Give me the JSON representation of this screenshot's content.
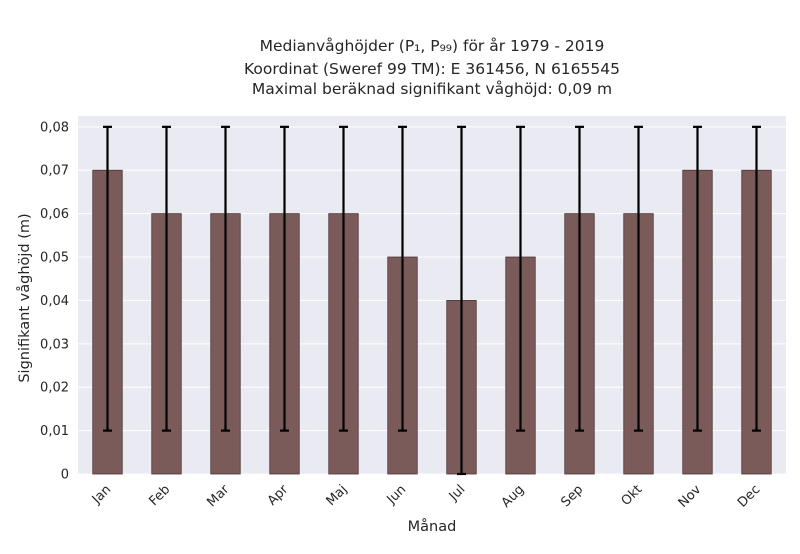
{
  "chart_data": {
    "type": "bar",
    "title_lines": [
      "Medianvåghöjder (P₁, P₉₉) för år 1979 - 2019",
      "Koordinat (Sweref 99 TM): E 361456, N 6165545",
      "Maximal beräknad signifikant våghöjd: 0,09 m"
    ],
    "xlabel": "Månad",
    "ylabel": "Signifikant våghöjd (m)",
    "categories": [
      "Jan",
      "Feb",
      "Mar",
      "Apr",
      "Maj",
      "Jun",
      "Jul",
      "Aug",
      "Sep",
      "Okt",
      "Nov",
      "Dec"
    ],
    "series": [
      {
        "values": [
          0.07,
          0.06,
          0.06,
          0.06,
          0.06,
          0.05,
          0.04,
          0.05,
          0.06,
          0.06,
          0.07,
          0.07
        ],
        "error_low": [
          0.01,
          0.01,
          0.01,
          0.01,
          0.01,
          0.01,
          0.0,
          0.01,
          0.01,
          0.01,
          0.01,
          0.01
        ],
        "error_high": [
          0.08,
          0.08,
          0.08,
          0.08,
          0.08,
          0.08,
          0.08,
          0.08,
          0.08,
          0.08,
          0.08,
          0.08
        ]
      }
    ],
    "ylim": [
      0,
      0.0825
    ],
    "yticks": [
      0,
      0.01,
      0.02,
      0.03,
      0.04,
      0.05,
      0.06,
      0.07,
      0.08
    ],
    "ytick_labels": [
      "0",
      "0,01",
      "0,02",
      "0,03",
      "0,04",
      "0,05",
      "0,06",
      "0,07",
      "0,08"
    ],
    "grid": true,
    "colors": {
      "bar": "#7b5a5a",
      "bar_edge": "#4a3535",
      "errorbar": "#000000",
      "background": "#eaeaf2",
      "grid": "#ffffff"
    }
  }
}
